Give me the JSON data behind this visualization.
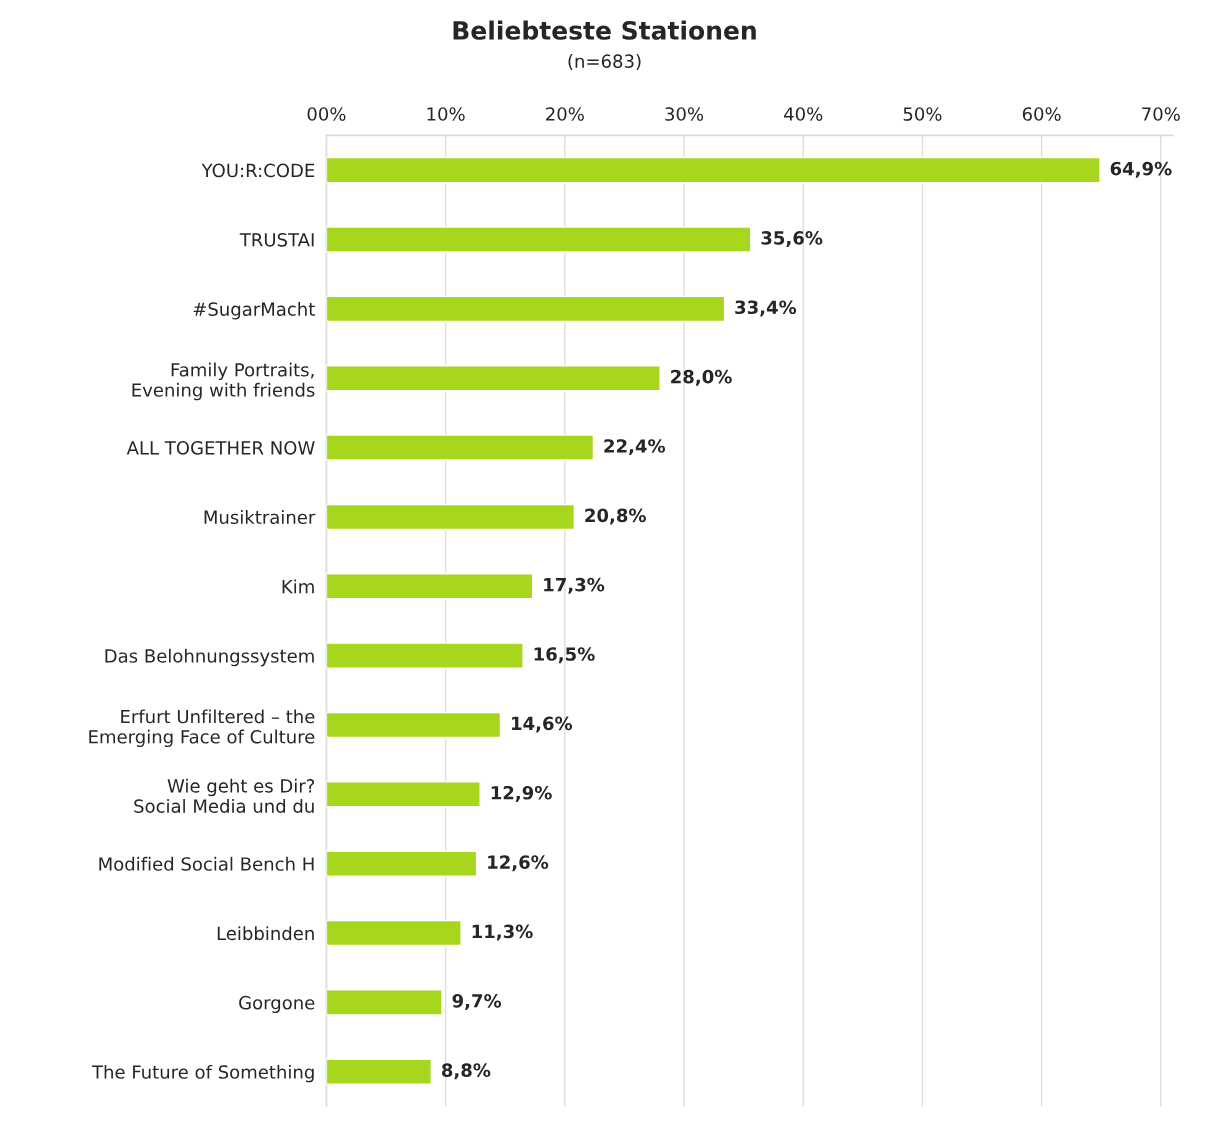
{
  "chart_data": {
    "type": "bar",
    "orientation": "horizontal",
    "title": "Beliebteste Stationen",
    "subtitle": "(n=683)",
    "categories": [
      "YOU:R:CODE",
      "TRUSTAI",
      "#SugarMacht",
      "Family Portraits,\nEvening with friends",
      "ALL TOGETHER NOW",
      "Musiktrainer",
      "Kim",
      "Das Belohnungssystem",
      "Erfurt Unfiltered – the\nEmerging Face of Culture",
      "Wie geht es Dir?\nSocial Media und du",
      "Modified Social Bench H",
      "Leibbinden",
      "Gorgone",
      "The Future of Something"
    ],
    "values": [
      64.9,
      35.6,
      33.4,
      28.0,
      22.4,
      20.8,
      17.3,
      16.5,
      14.6,
      12.9,
      12.6,
      11.3,
      9.7,
      8.8
    ],
    "value_labels": [
      "64,9%",
      "35,6%",
      "33,4%",
      "28,0%",
      "22,4%",
      "20,8%",
      "17,3%",
      "16,5%",
      "14,6%",
      "12,9%",
      "12,6%",
      "11,3%",
      "9,7%",
      "8,8%"
    ],
    "color": "#a6d61e",
    "xlim": [
      0,
      71
    ],
    "xticks": [
      {
        "value": 0,
        "label": "00%"
      },
      {
        "value": 10,
        "label": "10%"
      },
      {
        "value": 20,
        "label": "20%"
      },
      {
        "value": 30,
        "label": "30%"
      },
      {
        "value": 40,
        "label": "40%"
      },
      {
        "value": 50,
        "label": "50%"
      },
      {
        "value": 60,
        "label": "60%"
      },
      {
        "value": 70,
        "label": "70%"
      }
    ],
    "grid": "x"
  }
}
